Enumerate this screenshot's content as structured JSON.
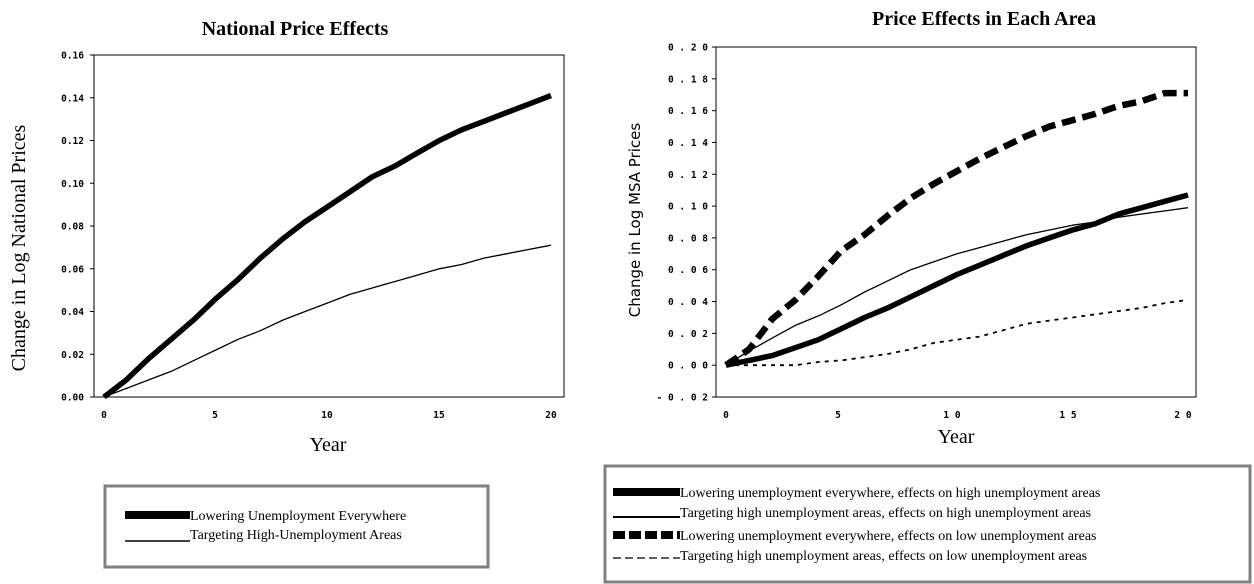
{
  "chart_data": [
    {
      "type": "line",
      "title": "National Price Effects",
      "xlabel": "Year",
      "ylabel": "Change in Log National Prices",
      "xlim": [
        0,
        20
      ],
      "ylim": [
        0,
        0.16
      ],
      "x_ticks": [
        "0",
        "5",
        "10",
        "15",
        "20"
      ],
      "y_ticks": [
        "0.00",
        "0.02",
        "0.04",
        "0.06",
        "0.08",
        "0.10",
        "0.12",
        "0.14",
        "0.16"
      ],
      "grid": false,
      "legend_position": "bottom",
      "series": [
        {
          "name": "Lowering Unemployment Everywhere",
          "style": "thick-solid",
          "color": "#000000",
          "x": [
            0,
            1,
            2,
            3,
            4,
            5,
            6,
            7,
            8,
            9,
            10,
            11,
            12,
            13,
            14,
            15,
            16,
            17,
            18,
            19,
            20
          ],
          "y": [
            0.0,
            0.008,
            0.018,
            0.027,
            0.036,
            0.046,
            0.055,
            0.065,
            0.074,
            0.082,
            0.089,
            0.096,
            0.103,
            0.108,
            0.114,
            0.12,
            0.125,
            0.129,
            0.133,
            0.137,
            0.141
          ]
        },
        {
          "name": "Targeting High-Unemployment Areas",
          "style": "thin-solid",
          "color": "#000000",
          "x": [
            0,
            1,
            2,
            3,
            4,
            5,
            6,
            7,
            8,
            9,
            10,
            11,
            12,
            13,
            14,
            15,
            16,
            17,
            18,
            19,
            20
          ],
          "y": [
            0.0,
            0.004,
            0.008,
            0.012,
            0.017,
            0.022,
            0.027,
            0.031,
            0.036,
            0.04,
            0.044,
            0.048,
            0.051,
            0.054,
            0.057,
            0.06,
            0.062,
            0.065,
            0.067,
            0.069,
            0.071
          ]
        }
      ]
    },
    {
      "type": "line",
      "title": "Price Effects in Each Area",
      "xlabel": "Year",
      "ylabel": "Change in Log MSA Prices",
      "xlim": [
        0,
        20
      ],
      "ylim": [
        -0.02,
        0.2
      ],
      "x_ticks": [
        "0",
        "5",
        "1 0",
        "1 5",
        "2 0"
      ],
      "y_ticks": [
        "- 0 . 0 2",
        "0 . 0 0",
        "0 . 0 2",
        "0 . 0 4",
        "0 . 0 6",
        "0 . 0 8",
        "0 . 1 0",
        "0 . 1 2",
        "0 . 1 4",
        "0 . 1 6",
        "0 . 1 8",
        "0 . 2 0"
      ],
      "grid": false,
      "legend_position": "bottom",
      "series": [
        {
          "name": "Lowering unemployment everywhere, effects on high unemployment areas",
          "style": "thick-solid",
          "color": "#000000",
          "x": [
            0,
            1,
            2,
            3,
            4,
            5,
            6,
            7,
            8,
            9,
            10,
            11,
            12,
            13,
            14,
            15,
            16,
            17,
            18,
            19,
            20
          ],
          "y": [
            0.0,
            0.003,
            0.006,
            0.011,
            0.016,
            0.023,
            0.03,
            0.036,
            0.043,
            0.05,
            0.057,
            0.063,
            0.069,
            0.075,
            0.08,
            0.085,
            0.089,
            0.095,
            0.099,
            0.103,
            0.107
          ]
        },
        {
          "name": "Targeting high unemployment areas, effects on high unemployment areas",
          "style": "thin-solid",
          "color": "#000000",
          "x": [
            0,
            1,
            2,
            3,
            4,
            5,
            6,
            7,
            8,
            9,
            10,
            11,
            12,
            13,
            14,
            15,
            16,
            17,
            18,
            19,
            20
          ],
          "y": [
            0.0,
            0.009,
            0.017,
            0.025,
            0.031,
            0.038,
            0.046,
            0.053,
            0.06,
            0.065,
            0.07,
            0.074,
            0.078,
            0.082,
            0.085,
            0.088,
            0.09,
            0.093,
            0.095,
            0.097,
            0.099
          ]
        },
        {
          "name": "Lowering unemployment everywhere, effects on low unemployment areas",
          "style": "thick-dashed",
          "color": "#000000",
          "x": [
            0,
            1,
            2,
            3,
            4,
            5,
            6,
            7,
            8,
            9,
            10,
            11,
            12,
            13,
            14,
            15,
            16,
            17,
            18,
            19,
            20
          ],
          "y": [
            0.0,
            0.01,
            0.029,
            0.041,
            0.056,
            0.072,
            0.082,
            0.094,
            0.105,
            0.114,
            0.122,
            0.13,
            0.137,
            0.144,
            0.15,
            0.154,
            0.158,
            0.163,
            0.166,
            0.171,
            0.171
          ]
        },
        {
          "name": "Targeting high unemployment areas, effects on low unemployment areas",
          "style": "thin-dashed",
          "color": "#000000",
          "x": [
            0,
            1,
            2,
            3,
            4,
            5,
            6,
            7,
            8,
            9,
            10,
            11,
            12,
            13,
            14,
            15,
            16,
            17,
            18,
            19,
            20
          ],
          "y": [
            0.0,
            0.0,
            0.0,
            0.0,
            0.002,
            0.003,
            0.005,
            0.007,
            0.01,
            0.014,
            0.016,
            0.018,
            0.022,
            0.026,
            0.028,
            0.03,
            0.032,
            0.034,
            0.036,
            0.039,
            0.041
          ]
        }
      ]
    }
  ]
}
